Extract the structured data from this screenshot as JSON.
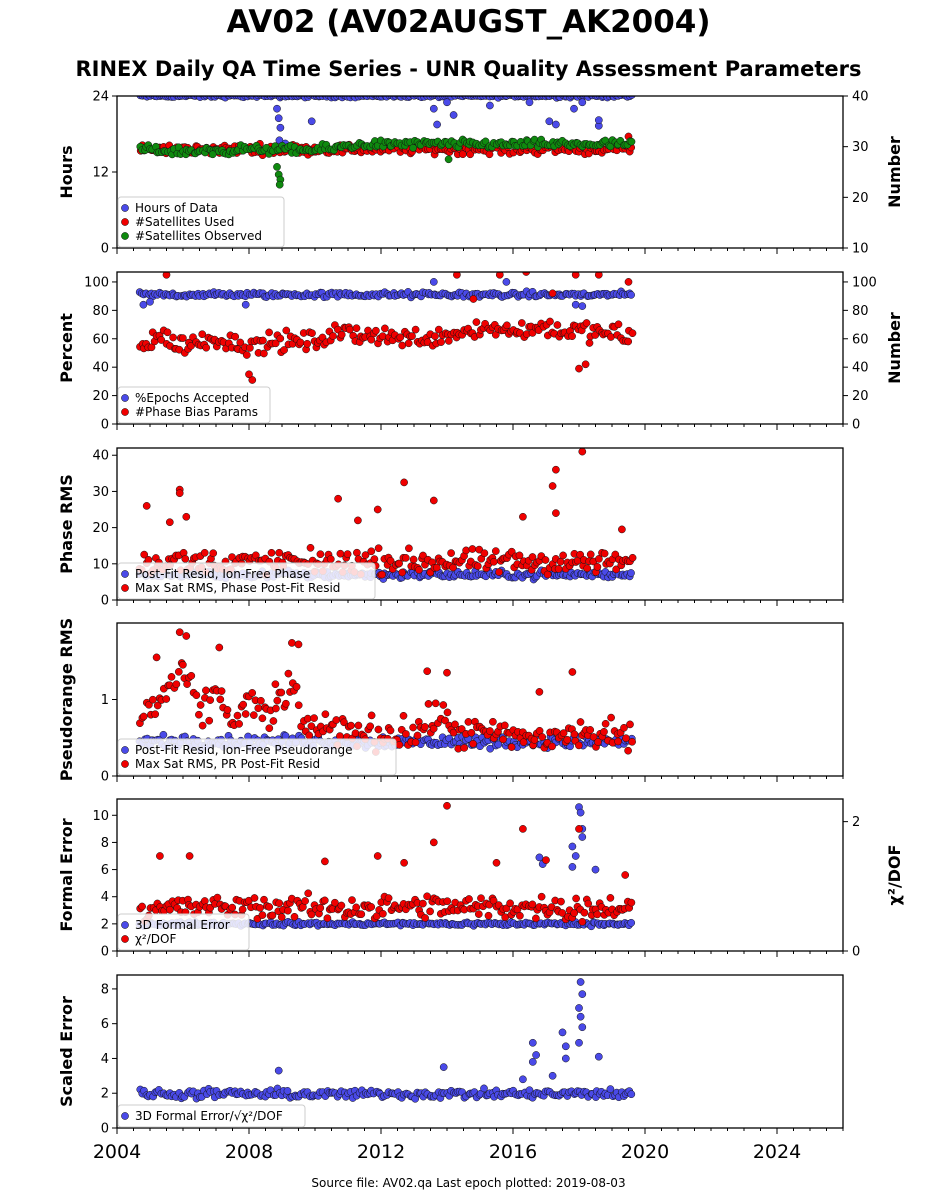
{
  "page": {
    "title": "AV02 (AV02AUGST_AK2004)",
    "subtitle": "RINEX Daily QA Time Series - UNR Quality Assessment Parameters",
    "footer": "Source file: AV02.qa Last epoch plotted: 2019-08-03"
  },
  "colors": {
    "blue": "#4a4ae8",
    "red": "#f00000",
    "green": "#0f8a0f"
  },
  "chart_data": [
    {
      "id": "hours",
      "type": "scatter",
      "ylabel": "Hours",
      "ylabel_right": "Number",
      "xlim": [
        2004,
        2026
      ],
      "ylim": [
        0,
        24
      ],
      "y_ticks": [
        0,
        12,
        24
      ],
      "ylim_right": [
        10,
        40
      ],
      "y_ticks_right": [
        10,
        20,
        30,
        40
      ],
      "legend_placement": "lower-left",
      "series": [
        {
          "name": "Hours of Data",
          "color": "blue",
          "axis": "left",
          "x_range": [
            2004.7,
            2019.6
          ],
          "base": 24,
          "noise": 0.2,
          "outliers": [
            [
              2008.85,
              22
            ],
            [
              2008.9,
              20.5
            ],
            [
              2008.95,
              19
            ],
            [
              2008.92,
              17
            ],
            [
              2009.1,
              16.5
            ],
            [
              2009.9,
              20
            ],
            [
              2013.6,
              22
            ],
            [
              2013.7,
              19.5
            ],
            [
              2014.0,
              23
            ],
            [
              2014.2,
              21
            ],
            [
              2015.3,
              22.5
            ],
            [
              2016.5,
              23
            ],
            [
              2017.1,
              20
            ],
            [
              2017.3,
              19.5
            ],
            [
              2017.85,
              22
            ],
            [
              2018.1,
              23
            ],
            [
              2018.6,
              19.3
            ],
            [
              2018.6,
              20.2
            ]
          ]
        },
        {
          "name": "#Satellites Used",
          "color": "red",
          "axis": "right",
          "x_range": [
            2004.7,
            2019.6
          ],
          "base": 29.5,
          "noise": 0.8,
          "outliers": [
            [
              2005.2,
              29.3
            ],
            [
              2019.5,
              32
            ]
          ]
        },
        {
          "name": "#Satellites Observed",
          "color": "green",
          "axis": "right",
          "x_range": [
            2004.7,
            2019.6
          ],
          "trend": [
            [
              2004.7,
              29.5
            ],
            [
              2006.0,
              29
            ],
            [
              2008.0,
              29.5
            ],
            [
              2010.0,
              29.3
            ],
            [
              2011.5,
              30.5
            ],
            [
              2016.0,
              30.5
            ],
            [
              2019.6,
              30.5
            ]
          ],
          "noise": 0.7,
          "outliers": [
            [
              2008.85,
              26
            ],
            [
              2008.9,
              24.5
            ],
            [
              2008.95,
              23.5
            ],
            [
              2008.93,
              22.5
            ],
            [
              2006.9,
              28.5
            ],
            [
              2014.05,
              27.5
            ]
          ]
        }
      ]
    },
    {
      "id": "percent",
      "type": "scatter",
      "ylabel": "Percent",
      "ylabel_right": "Number",
      "xlim": [
        2004,
        2026
      ],
      "ylim": [
        0,
        107
      ],
      "y_ticks": [
        0,
        20,
        40,
        60,
        80,
        100
      ],
      "ylim_right": [
        0,
        107
      ],
      "y_ticks_right": [
        0,
        20,
        40,
        60,
        80,
        100
      ],
      "legend_placement": "lower-left",
      "series": [
        {
          "name": "%Epochs Accepted",
          "color": "blue",
          "axis": "left",
          "x_range": [
            2004.7,
            2019.6
          ],
          "base": 91,
          "noise": 1.6,
          "outliers": [
            [
              2004.8,
              84
            ],
            [
              2005.0,
              86
            ],
            [
              2007.9,
              84
            ],
            [
              2013.6,
              100
            ],
            [
              2015.8,
              100
            ],
            [
              2017.9,
              84
            ],
            [
              2018.1,
              83
            ]
          ]
        },
        {
          "name": "#Phase Bias Params",
          "color": "red",
          "axis": "right",
          "x_range": [
            2004.7,
            2019.6
          ],
          "trend": [
            [
              2004.7,
              55
            ],
            [
              2005.3,
              62
            ],
            [
              2006.0,
              55
            ],
            [
              2007.0,
              60
            ],
            [
              2008.0,
              55
            ],
            [
              2009.0,
              58
            ],
            [
              2010.0,
              58
            ],
            [
              2011.0,
              65
            ],
            [
              2012.0,
              62
            ],
            [
              2013.0,
              60
            ],
            [
              2014.0,
              63
            ],
            [
              2015.0,
              68
            ],
            [
              2016.0,
              66
            ],
            [
              2017.0,
              68
            ],
            [
              2018.0,
              65
            ],
            [
              2019.6,
              62
            ]
          ],
          "noise": 6,
          "outliers": [
            [
              2008.1,
              31
            ],
            [
              2008.0,
              35
            ],
            [
              2005.5,
              105
            ],
            [
              2014.3,
              105
            ],
            [
              2015.6,
              105
            ],
            [
              2016.4,
              107
            ],
            [
              2017.9,
              105
            ],
            [
              2018.6,
              105
            ],
            [
              2019.5,
              100
            ],
            [
              2018.0,
              39
            ],
            [
              2018.2,
              42
            ],
            [
              2014.8,
              88
            ],
            [
              2017.2,
              92
            ]
          ]
        }
      ]
    },
    {
      "id": "phase",
      "type": "scatter",
      "ylabel": "Phase RMS",
      "xlim": [
        2004,
        2026
      ],
      "ylim": [
        0,
        42
      ],
      "y_ticks": [
        0,
        10,
        20,
        30,
        40
      ],
      "legend_placement": "lower-left",
      "series": [
        {
          "name": "Post-Fit Resid, Ion-Free Phase",
          "color": "blue",
          "axis": "left",
          "x_range": [
            2004.7,
            2019.6
          ],
          "base": 7,
          "noise": 0.9,
          "outliers": []
        },
        {
          "name": "Max Sat RMS, Phase Post-Fit Resid",
          "color": "red",
          "axis": "left",
          "x_range": [
            2004.7,
            2019.6
          ],
          "base": 10.5,
          "noise": 2.8,
          "outliers": [
            [
              2004.9,
              26
            ],
            [
              2005.9,
              30.5
            ],
            [
              2005.9,
              29.5
            ],
            [
              2006.1,
              23
            ],
            [
              2010.7,
              28
            ],
            [
              2011.9,
              25
            ],
            [
              2012.7,
              32.5
            ],
            [
              2013.6,
              27.5
            ],
            [
              2016.3,
              23
            ],
            [
              2017.2,
              31.5
            ],
            [
              2017.3,
              36
            ],
            [
              2018.1,
              41
            ],
            [
              2017.3,
              24
            ],
            [
              2019.3,
              19.5
            ],
            [
              2005.6,
              21.5
            ],
            [
              2011.3,
              22
            ]
          ]
        }
      ]
    },
    {
      "id": "pseudorange",
      "type": "scatter",
      "ylabel": "Pseudorange RMS",
      "xlim": [
        2004,
        2026
      ],
      "ylim": [
        0,
        2.0
      ],
      "y_ticks": [
        0,
        1
      ],
      "legend_placement": "lower-left",
      "series": [
        {
          "name": "Post-Fit Resid, Ion-Free Pseudorange",
          "color": "blue",
          "axis": "left",
          "x_range": [
            2004.7,
            2019.6
          ],
          "base": 0.45,
          "noise": 0.07,
          "outliers": []
        },
        {
          "name": "Max Sat RMS, PR Post-Fit Resid",
          "color": "red",
          "axis": "left",
          "x_range": [
            2004.7,
            2019.6
          ],
          "trend": [
            [
              2004.7,
              0.75
            ],
            [
              2005.5,
              1.1
            ],
            [
              2006.0,
              1.3
            ],
            [
              2006.6,
              0.8
            ],
            [
              2007.0,
              1.1
            ],
            [
              2007.6,
              0.7
            ],
            [
              2008.0,
              1.0
            ],
            [
              2008.6,
              0.7
            ],
            [
              2009.2,
              1.2
            ],
            [
              2009.6,
              0.7
            ],
            [
              2010.5,
              0.6
            ],
            [
              2011.0,
              0.6
            ],
            [
              2012.0,
              0.55
            ],
            [
              2013.0,
              0.55
            ],
            [
              2013.8,
              0.8
            ],
            [
              2014.3,
              0.55
            ],
            [
              2015.0,
              0.55
            ],
            [
              2016.0,
              0.5
            ],
            [
              2017.0,
              0.5
            ],
            [
              2018.0,
              0.55
            ],
            [
              2019.6,
              0.5
            ]
          ],
          "noise": 0.18,
          "outliers": [
            [
              2005.9,
              1.88
            ],
            [
              2006.1,
              1.83
            ],
            [
              2007.1,
              1.68
            ],
            [
              2009.3,
              1.74
            ],
            [
              2009.5,
              1.72
            ],
            [
              2013.4,
              1.37
            ],
            [
              2014.0,
              1.35
            ],
            [
              2017.8,
              1.36
            ],
            [
              2016.8,
              1.1
            ],
            [
              2005.2,
              1.55
            ],
            [
              2008.8,
              1.2
            ]
          ]
        }
      ]
    },
    {
      "id": "formal",
      "type": "scatter",
      "ylabel": "Formal Error",
      "ylabel_right": "χ²/DOF",
      "xlim": [
        2004,
        2026
      ],
      "ylim": [
        0,
        11.2
      ],
      "y_ticks": [
        0,
        2,
        4,
        6,
        8,
        10
      ],
      "ylim_right": [
        0,
        2.35
      ],
      "y_ticks_right": [
        0,
        2
      ],
      "legend_placement": "lower-left",
      "series": [
        {
          "name": "3D Formal Error",
          "color": "blue",
          "axis": "left",
          "x_range": [
            2004.7,
            2019.6
          ],
          "base": 2.0,
          "noise": 0.12,
          "outliers": [
            [
              2016.8,
              6.9
            ],
            [
              2016.9,
              6.4
            ],
            [
              2017.8,
              7.7
            ],
            [
              2017.9,
              7.0
            ],
            [
              2018.0,
              10.6
            ],
            [
              2018.05,
              10.2
            ],
            [
              2018.1,
              9.0
            ],
            [
              2018.1,
              8.4
            ],
            [
              2018.5,
              6.0
            ],
            [
              2017.8,
              6.2
            ]
          ]
        },
        {
          "name": "χ²/DOF",
          "color": "red",
          "axis": "left",
          "x_range": [
            2004.7,
            2019.6
          ],
          "base": 3.2,
          "noise": 0.75,
          "outliers": [
            [
              2005.3,
              7.0
            ],
            [
              2006.2,
              7.0
            ],
            [
              2010.3,
              6.6
            ],
            [
              2011.9,
              7.0
            ],
            [
              2013.6,
              8.0
            ],
            [
              2014.0,
              10.7
            ],
            [
              2016.3,
              9.0
            ],
            [
              2017.0,
              6.7
            ],
            [
              2018.0,
              9.0
            ],
            [
              2019.4,
              5.6
            ],
            [
              2015.5,
              6.5
            ],
            [
              2012.7,
              6.5
            ]
          ]
        }
      ]
    },
    {
      "id": "scaled",
      "type": "scatter",
      "ylabel": "Scaled Error",
      "xlim": [
        2004,
        2026
      ],
      "ylim": [
        0,
        8.8
      ],
      "y_ticks": [
        0,
        2,
        4,
        6,
        8
      ],
      "x_ticks": [
        2004,
        2008,
        2012,
        2016,
        2020,
        2024
      ],
      "legend_placement": "lower-left",
      "series": [
        {
          "name": "3D Formal Error/√χ²/DOF",
          "color": "blue",
          "axis": "left",
          "x_range": [
            2004.7,
            2019.6
          ],
          "base": 1.95,
          "noise": 0.22,
          "outliers": [
            [
              2008.9,
              3.3
            ],
            [
              2013.9,
              3.5
            ],
            [
              2016.6,
              4.9
            ],
            [
              2016.7,
              4.2
            ],
            [
              2016.6,
              3.8
            ],
            [
              2017.5,
              5.5
            ],
            [
              2017.6,
              4.7
            ],
            [
              2017.6,
              4.0
            ],
            [
              2018.0,
              6.9
            ],
            [
              2018.05,
              6.4
            ],
            [
              2018.05,
              8.4
            ],
            [
              2018.1,
              7.7
            ],
            [
              2018.1,
              5.8
            ],
            [
              2018.0,
              4.9
            ],
            [
              2018.6,
              4.1
            ],
            [
              2016.3,
              2.8
            ],
            [
              2017.2,
              3.0
            ]
          ]
        }
      ]
    }
  ]
}
